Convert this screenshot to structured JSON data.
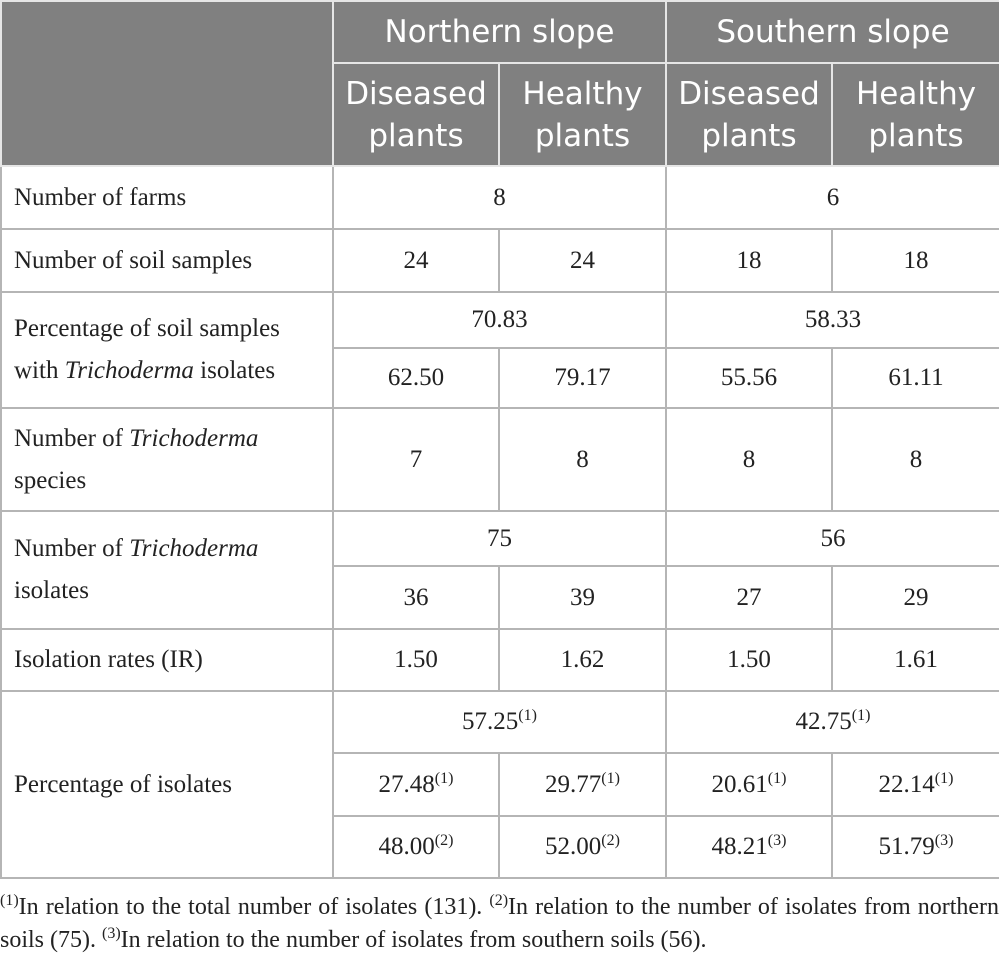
{
  "table": {
    "header": {
      "groups": [
        "Northern slope",
        "Southern slope"
      ],
      "columns": [
        "Diseased plants",
        "Healthy plants",
        "Diseased plants",
        "Healthy plants"
      ]
    },
    "rows": [
      {
        "label": [
          "Number of farms"
        ],
        "cells": [
          "8",
          "6"
        ]
      },
      {
        "label": [
          "Number of soil samples"
        ],
        "cells": [
          "24",
          "24",
          "18",
          "18"
        ]
      },
      {
        "label": [
          "Percentage of soil samples with",
          "Trichoderma",
          "isolates"
        ],
        "total": [
          "70.83",
          "58.33"
        ],
        "cells": [
          "62.50",
          "79.17",
          "55.56",
          "61.11"
        ]
      },
      {
        "label": [
          "Number of",
          "Trichoderma",
          "species"
        ],
        "cells": [
          "7",
          "8",
          "8",
          "8"
        ]
      },
      {
        "label": [
          "Number of",
          "Trichoderma",
          "isolates"
        ],
        "total": [
          "75",
          "56"
        ],
        "cells": [
          "36",
          "39",
          "27",
          "29"
        ]
      },
      {
        "label": [
          "Isolation rates (IR)"
        ],
        "cells": [
          "1.50",
          "1.62",
          "1.50",
          "1.61"
        ]
      },
      {
        "label": [
          "Percentage of isolates"
        ],
        "total": [
          {
            "value": "57.25",
            "note": "(1)"
          },
          {
            "value": "42.75",
            "note": "(1)"
          }
        ],
        "cells": [
          {
            "value": "27.48",
            "note": "(1)"
          },
          {
            "value": "29.77",
            "note": "(1)"
          },
          {
            "value": "20.61",
            "note": "(1)"
          },
          {
            "value": "22.14",
            "note": "(1)"
          }
        ],
        "by_slope": [
          {
            "value": "48.00",
            "note": "(2)"
          },
          {
            "value": "52.00",
            "note": "(2)"
          },
          {
            "value": "48.21",
            "note": "(3)"
          },
          {
            "value": "51.79",
            "note": "(3)"
          }
        ]
      }
    ]
  },
  "footnotes": [
    {
      "mark": "(1)",
      "text": "In relation to the total number of isolates (131)."
    },
    {
      "mark": "(2)",
      "text": "In relation to the number of isolates from northern soils (75)."
    },
    {
      "mark": "(3)",
      "text": "In relation to the number of isolates from southern soils (56)."
    }
  ]
}
